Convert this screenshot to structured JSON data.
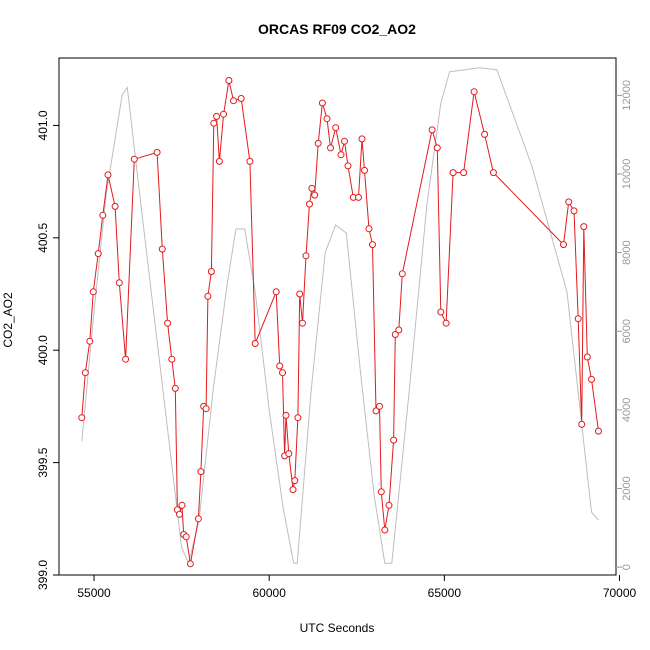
{
  "chart_data": {
    "type": "line",
    "title": "ORCAS RF09 CO2_AO2",
    "xlabel": "UTC Seconds",
    "ylabel": "CO2_AO2",
    "xlim": [
      54000,
      69900
    ],
    "ylim": [
      399.0,
      401.3
    ],
    "y2lim": [
      -200,
      12950
    ],
    "x_ticks": [
      55000,
      60000,
      65000,
      70000
    ],
    "y_ticks": [
      399.0,
      399.5,
      400.0,
      400.5,
      401.0
    ],
    "y2_ticks": [
      0,
      2000,
      4000,
      6000,
      8000,
      10000,
      12000
    ],
    "series": [
      {
        "color": "#e31a1c",
        "marker": "circle",
        "points": [
          [
            54650,
            399.7
          ],
          [
            54750,
            399.9
          ],
          [
            54880,
            400.04
          ],
          [
            54980,
            400.26
          ],
          [
            55120,
            400.43
          ],
          [
            55250,
            400.6
          ],
          [
            55400,
            400.78
          ],
          [
            55600,
            400.64
          ],
          [
            55720,
            400.3
          ],
          [
            55900,
            399.96
          ],
          [
            56150,
            400.85
          ],
          [
            56800,
            400.88
          ],
          [
            56950,
            400.45
          ],
          [
            57100,
            400.12
          ],
          [
            57220,
            399.96
          ],
          [
            57320,
            399.83
          ],
          [
            57380,
            399.29
          ],
          [
            57440,
            399.27
          ],
          [
            57510,
            399.31
          ],
          [
            57560,
            399.18
          ],
          [
            57630,
            399.17
          ],
          [
            57750,
            399.05
          ],
          [
            57980,
            399.25
          ],
          [
            58050,
            399.46
          ],
          [
            58130,
            399.75
          ],
          [
            58200,
            399.74
          ],
          [
            58250,
            400.24
          ],
          [
            58350,
            400.35
          ],
          [
            58420,
            401.01
          ],
          [
            58500,
            401.04
          ],
          [
            58580,
            400.84
          ],
          [
            58700,
            401.05
          ],
          [
            58850,
            401.2
          ],
          [
            58980,
            401.11
          ],
          [
            59200,
            401.12
          ],
          [
            59450,
            400.84
          ],
          [
            59600,
            400.03
          ],
          [
            60200,
            400.26
          ],
          [
            60300,
            399.93
          ],
          [
            60380,
            399.9
          ],
          [
            60440,
            399.53
          ],
          [
            60480,
            399.71
          ],
          [
            60560,
            399.54
          ],
          [
            60680,
            399.38
          ],
          [
            60730,
            399.42
          ],
          [
            60820,
            399.7
          ],
          [
            60870,
            400.25
          ],
          [
            60950,
            400.12
          ],
          [
            61050,
            400.42
          ],
          [
            61150,
            400.65
          ],
          [
            61220,
            400.72
          ],
          [
            61300,
            400.69
          ],
          [
            61400,
            400.92
          ],
          [
            61520,
            401.1
          ],
          [
            61650,
            401.03
          ],
          [
            61750,
            400.9
          ],
          [
            61900,
            400.99
          ],
          [
            62050,
            400.87
          ],
          [
            62150,
            400.93
          ],
          [
            62250,
            400.82
          ],
          [
            62400,
            400.68
          ],
          [
            62550,
            400.68
          ],
          [
            62650,
            400.94
          ],
          [
            62720,
            400.8
          ],
          [
            62850,
            400.54
          ],
          [
            62950,
            400.47
          ],
          [
            63050,
            399.73
          ],
          [
            63150,
            399.75
          ],
          [
            63200,
            399.37
          ],
          [
            63300,
            399.2
          ],
          [
            63420,
            399.31
          ],
          [
            63550,
            399.6
          ],
          [
            63600,
            400.07
          ],
          [
            63700,
            400.09
          ],
          [
            63800,
            400.34
          ],
          [
            64650,
            400.98
          ],
          [
            64800,
            400.9
          ],
          [
            64900,
            400.17
          ],
          [
            65050,
            400.12
          ],
          [
            65250,
            400.79
          ],
          [
            65550,
            400.79
          ],
          [
            65850,
            401.15
          ],
          [
            66150,
            400.96
          ],
          [
            66400,
            400.79
          ],
          [
            68400,
            400.47
          ],
          [
            68550,
            400.66
          ],
          [
            68700,
            400.62
          ],
          [
            68820,
            400.14
          ],
          [
            68920,
            399.67
          ],
          [
            68980,
            400.55
          ],
          [
            69080,
            399.97
          ],
          [
            69200,
            399.87
          ],
          [
            69400,
            399.64
          ]
        ]
      },
      {
        "color": "#bebebe",
        "axis": "right",
        "points": [
          [
            54650,
            3200
          ],
          [
            55000,
            6500
          ],
          [
            55350,
            9500
          ],
          [
            55800,
            12000
          ],
          [
            55950,
            12200
          ],
          [
            56300,
            9500
          ],
          [
            56700,
            6500
          ],
          [
            57100,
            3500
          ],
          [
            57500,
            500
          ],
          [
            57700,
            100
          ],
          [
            58000,
            1200
          ],
          [
            58400,
            4500
          ],
          [
            58800,
            7200
          ],
          [
            59050,
            8600
          ],
          [
            59300,
            8600
          ],
          [
            59600,
            7000
          ],
          [
            60000,
            4000
          ],
          [
            60400,
            1500
          ],
          [
            60700,
            100
          ],
          [
            60800,
            100
          ],
          [
            61200,
            4500
          ],
          [
            61600,
            8000
          ],
          [
            61900,
            8700
          ],
          [
            62200,
            8500
          ],
          [
            62600,
            5000
          ],
          [
            63000,
            1800
          ],
          [
            63300,
            100
          ],
          [
            63500,
            100
          ],
          [
            64000,
            4500
          ],
          [
            64500,
            9200
          ],
          [
            64900,
            11800
          ],
          [
            65150,
            12600
          ],
          [
            66000,
            12700
          ],
          [
            66500,
            12650
          ],
          [
            67500,
            10200
          ],
          [
            68500,
            7000
          ],
          [
            69200,
            1400
          ],
          [
            69400,
            1200
          ]
        ]
      }
    ]
  }
}
